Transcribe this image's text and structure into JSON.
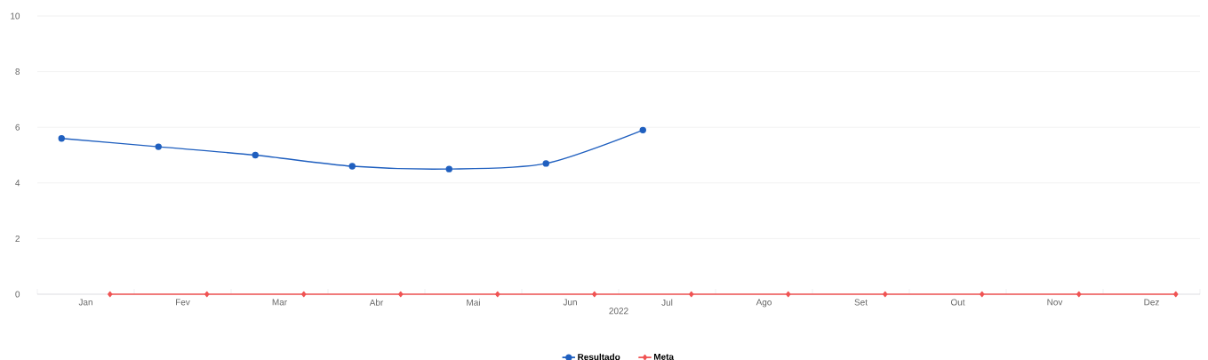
{
  "chart_data": {
    "type": "line",
    "xlabel": "2022",
    "categories": [
      "Jan",
      "Fev",
      "Mar",
      "Abr",
      "Mai",
      "Jun",
      "Jul",
      "Ago",
      "Set",
      "Out",
      "Nov",
      "Dez"
    ],
    "series": [
      {
        "name": "Resultado",
        "color": "#1f5fbf",
        "marker": "circle",
        "values": [
          5.6,
          5.3,
          5.0,
          4.6,
          4.5,
          4.7,
          5.9,
          null,
          null,
          null,
          null,
          null
        ]
      },
      {
        "name": "Meta",
        "color": "#f05454",
        "marker": "diamond",
        "values": [
          0,
          0,
          0,
          0,
          0,
          0,
          0,
          0,
          0,
          0,
          0,
          0
        ]
      }
    ],
    "ylim": [
      0,
      10
    ],
    "yticks": [
      0,
      2,
      4,
      6,
      8,
      10
    ],
    "grid": "y",
    "legend": "bottom"
  }
}
